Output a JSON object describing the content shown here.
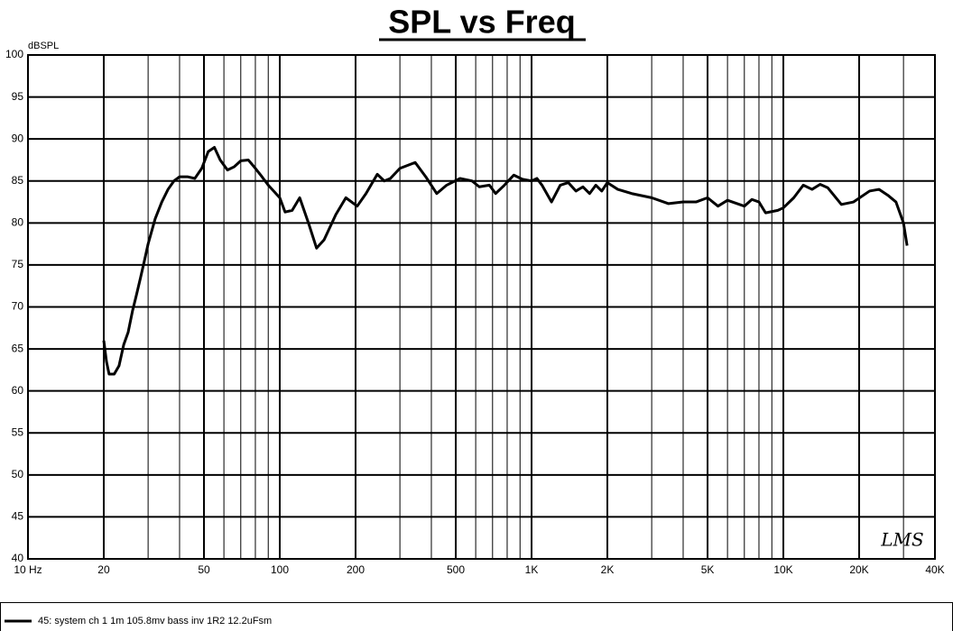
{
  "chart_data": {
    "type": "line",
    "title": "SPL vs Freq",
    "y_label": "dBSPL",
    "watermark": "LMS",
    "x_scale": "log",
    "grid": true,
    "minor_grid": true,
    "legend": "bottom-left",
    "xlim": [
      10,
      40000
    ],
    "ylim": [
      40,
      100
    ],
    "xticks": [
      {
        "value": 10,
        "label": "10 Hz"
      },
      20,
      50,
      100,
      200,
      500,
      {
        "value": 1000,
        "label": "1K"
      },
      {
        "value": 2000,
        "label": "2K"
      },
      {
        "value": 5000,
        "label": "5K"
      },
      {
        "value": 10000,
        "label": "10K"
      },
      {
        "value": 20000,
        "label": "20K"
      },
      {
        "value": 40000,
        "label": "40K"
      }
    ],
    "yticks": [
      40,
      45,
      50,
      55,
      60,
      65,
      70,
      75,
      80,
      85,
      90,
      95,
      100
    ],
    "x": [
      20,
      20.5,
      21,
      22,
      23,
      24,
      25,
      26,
      27,
      28,
      29,
      30,
      32,
      34,
      36,
      38,
      40,
      43,
      46,
      49,
      52,
      55,
      58,
      62,
      66,
      70,
      75,
      80,
      85,
      90,
      100,
      105,
      112,
      120,
      130,
      140,
      150,
      167,
      183,
      203,
      220,
      244,
      260,
      275,
      300,
      345,
      380,
      420,
      460,
      520,
      580,
      620,
      680,
      720,
      780,
      850,
      920,
      1000,
      1050,
      1100,
      1200,
      1300,
      1400,
      1500,
      1600,
      1700,
      1800,
      1900,
      2000,
      2200,
      2500,
      3000,
      3500,
      4000,
      4500,
      5000,
      5500,
      6000,
      7000,
      7500,
      8000,
      8500,
      9500,
      10000,
      11000,
      12000,
      13000,
      14000,
      15000,
      17000,
      19000,
      22000,
      24000,
      26000,
      28000,
      30000,
      31000
    ],
    "series": [
      {
        "name": "45: system ch 1 1m 105.8mv bass inv 1R2 12.2uFsm",
        "color": "#000000",
        "values": [
          66,
          63.5,
          62,
          62,
          63,
          65.5,
          67,
          69.5,
          71.5,
          73.5,
          75.5,
          77.5,
          80.5,
          82.5,
          84,
          85,
          85.5,
          85.5,
          85.3,
          86.5,
          88.5,
          89,
          87.5,
          86.3,
          86.7,
          87.4,
          87.5,
          86.5,
          85.5,
          84.5,
          83,
          81.3,
          81.5,
          83,
          80,
          77,
          78,
          81,
          83,
          82,
          83.5,
          85.8,
          85,
          85.3,
          86.5,
          87.2,
          85.5,
          83.5,
          84.5,
          85.3,
          85,
          84.3,
          84.5,
          83.5,
          84.5,
          85.7,
          85.2,
          85,
          85.3,
          84.5,
          82.5,
          84.5,
          84.8,
          83.8,
          84.3,
          83.5,
          84.5,
          83.8,
          84.8,
          84,
          83.5,
          83,
          82.3,
          82.5,
          82.5,
          83,
          82,
          82.7,
          82,
          82.8,
          82.5,
          81.2,
          81.5,
          81.8,
          83,
          84.5,
          84,
          84.6,
          84.2,
          82.2,
          82.5,
          83.8,
          84,
          83.3,
          82.5,
          80,
          77.3
        ]
      }
    ]
  }
}
